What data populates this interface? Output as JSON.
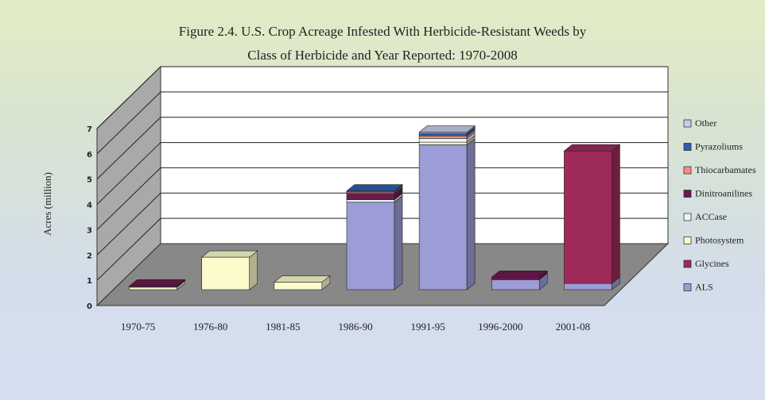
{
  "chart_data": {
    "type": "bar",
    "subtype": "stacked-3d",
    "title_line1": "Figure 2.4.  U.S. Crop Acreage Infested With Herbicide-Resistant Weeds by",
    "title_line2": "Class of Herbicide and Year Reported: 1970-2008",
    "xlabel": "",
    "ylabel": "Acres (million)",
    "ylim": [
      0,
      7
    ],
    "yticks": [
      "0",
      "1",
      "2",
      "3",
      "4",
      "5",
      "6",
      "7"
    ],
    "categories": [
      "1970-75",
      "1976-80",
      "1981-85",
      "1986-90",
      "1991-95",
      "1996-2000",
      "2001-08"
    ],
    "legend_position": "right",
    "series": [
      {
        "name": "ALS",
        "color": "#9c9cd6",
        "values": [
          0,
          0,
          0,
          3.5,
          5.8,
          0.4,
          0.25
        ]
      },
      {
        "name": "Glycines",
        "color": "#9e2a5a",
        "values": [
          0,
          0,
          0,
          0,
          0,
          0,
          5.3
        ]
      },
      {
        "name": "Photosystem",
        "color": "#fbfbcc",
        "values": [
          0.1,
          1.3,
          0.3,
          0,
          0.1,
          0,
          0
        ]
      },
      {
        "name": "ACCase",
        "color": "#e6f5f8",
        "values": [
          0,
          0,
          0,
          0.1,
          0.15,
          0,
          0
        ]
      },
      {
        "name": "Dinitroanilines",
        "color": "#6b1a4e",
        "values": [
          0.05,
          0,
          0,
          0.25,
          0,
          0.1,
          0
        ]
      },
      {
        "name": "Thiocarbamates",
        "color": "#f28f85",
        "values": [
          0,
          0,
          0,
          0.05,
          0.1,
          0,
          0
        ]
      },
      {
        "name": "Pyrazoliums",
        "color": "#2b5fae",
        "values": [
          0,
          0,
          0,
          0.05,
          0.1,
          0,
          0
        ]
      },
      {
        "name": "Other",
        "color": "#c8cde8",
        "values": [
          0,
          0,
          0,
          0,
          0.05,
          0,
          0
        ]
      }
    ],
    "legend_order": [
      "Other",
      "Pyrazoliums",
      "Thiocarbamates",
      "Dinitroanilines",
      "ACCase",
      "Photosystem",
      "Glycines",
      "ALS"
    ]
  }
}
